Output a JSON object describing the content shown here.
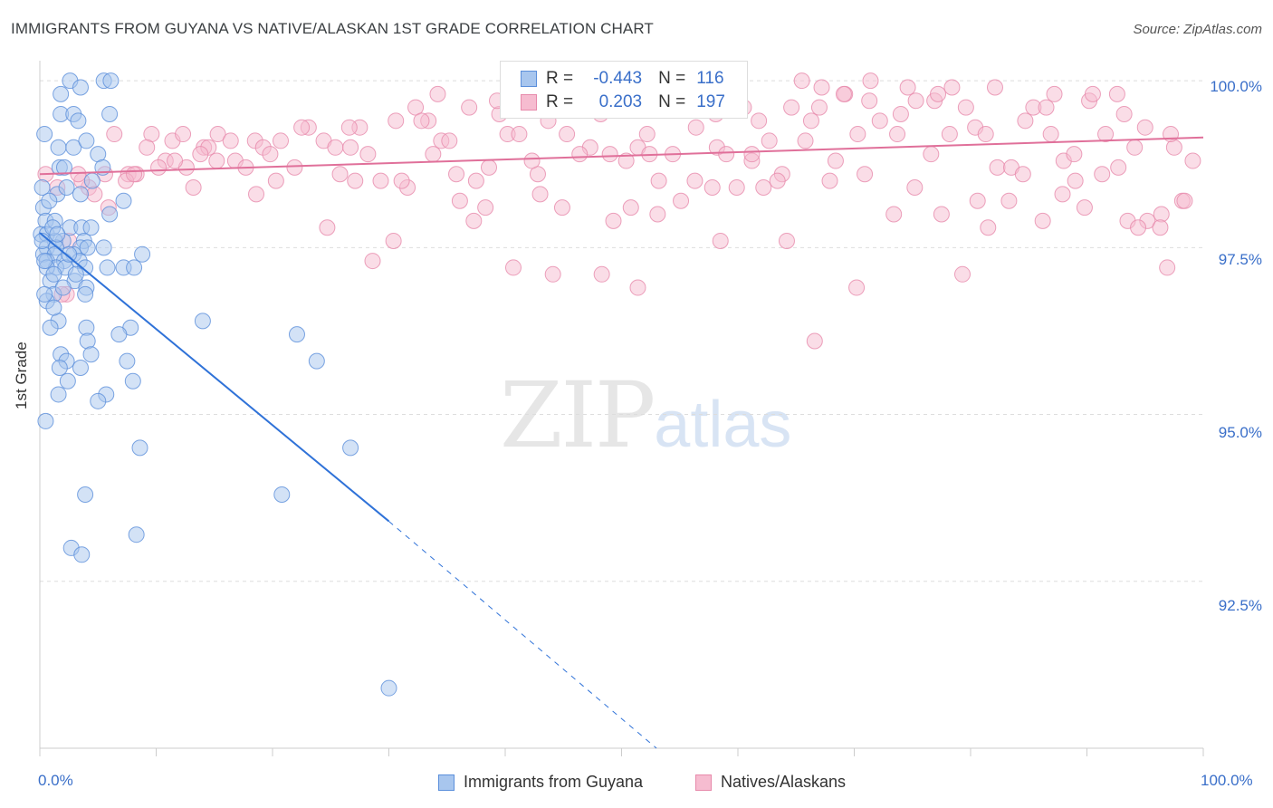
{
  "header": {
    "title": "IMMIGRANTS FROM GUYANA VS NATIVE/ALASKAN 1ST GRADE CORRELATION CHART",
    "source": "Source: ZipAtlas.com"
  },
  "watermark": {
    "zip": "ZIP",
    "atlas": "atlas"
  },
  "legend_top": {
    "rows": [
      {
        "r_label": "R =",
        "r_value": "-0.443",
        "n_label": "N =",
        "n_value": "116"
      },
      {
        "r_label": "R =",
        "r_value": "0.203",
        "n_label": "N =",
        "n_value": "197"
      }
    ]
  },
  "legend_bottom": {
    "series1": "Immigrants from Guyana",
    "series2": "Natives/Alaskans"
  },
  "colors": {
    "blue_fill": "#a8c6ee",
    "blue_stroke": "#5b8fdb",
    "blue_line": "#2f72d8",
    "pink_fill": "#f6bcd0",
    "pink_stroke": "#e78aab",
    "pink_line": "#e0709a",
    "tick_text": "#3a6fc9",
    "grid": "#dddddd"
  },
  "chart_data": {
    "type": "scatter",
    "title": "IMMIGRANTS FROM GUYANA VS NATIVE/ALASKAN 1ST GRADE CORRELATION CHART",
    "xlabel": "",
    "ylabel": "1st Grade",
    "x_tick_labels": [
      "0.0%",
      "100.0%"
    ],
    "y_tick_labels": [
      "100.0%",
      "97.5%",
      "95.0%",
      "92.5%"
    ],
    "xlim": [
      0,
      100
    ],
    "ylim": [
      90.0,
      100.3
    ],
    "grid": "horizontal dashed",
    "legend": "bottom-center",
    "series": [
      {
        "name": "Immigrants from Guyana",
        "color": "#a8c6ee",
        "points": [
          [
            2.6,
            100
          ],
          [
            3.5,
            99.9
          ],
          [
            5.5,
            100
          ],
          [
            1.8,
            99.5
          ],
          [
            2.9,
            99.5
          ],
          [
            6,
            99.5
          ],
          [
            3.3,
            99.4
          ],
          [
            1.6,
            99
          ],
          [
            2.9,
            99
          ],
          [
            5,
            98.9
          ],
          [
            1.7,
            98.7
          ],
          [
            2.1,
            98.7
          ],
          [
            5.4,
            98.7
          ],
          [
            4.5,
            98.5
          ],
          [
            0.2,
            98.4
          ],
          [
            1.5,
            98.3
          ],
          [
            3.5,
            98.3
          ],
          [
            7.2,
            98.2
          ],
          [
            0.3,
            98.1
          ],
          [
            6,
            98
          ],
          [
            0.5,
            97.9
          ],
          [
            1.3,
            97.9
          ],
          [
            2.6,
            97.8
          ],
          [
            3.6,
            97.8
          ],
          [
            4.4,
            97.8
          ],
          [
            0.1,
            97.7
          ],
          [
            0.6,
            97.7
          ],
          [
            2,
            97.6
          ],
          [
            3.8,
            97.6
          ],
          [
            1.3,
            97.6
          ],
          [
            0.6,
            97.5
          ],
          [
            1.4,
            97.5
          ],
          [
            3.5,
            97.5
          ],
          [
            5.5,
            97.5
          ],
          [
            4.1,
            97.5
          ],
          [
            0.3,
            97.4
          ],
          [
            1.3,
            97.4
          ],
          [
            2.9,
            97.4
          ],
          [
            8.8,
            97.4
          ],
          [
            0.6,
            97.3
          ],
          [
            2.1,
            97.3
          ],
          [
            3.4,
            97.3
          ],
          [
            3.9,
            97.2
          ],
          [
            1.4,
            97.2
          ],
          [
            0.6,
            97.2
          ],
          [
            2.2,
            97.2
          ],
          [
            5.8,
            97.2
          ],
          [
            7.2,
            97.2
          ],
          [
            8.1,
            97.2
          ],
          [
            0.9,
            97
          ],
          [
            3,
            97
          ],
          [
            4,
            96.9
          ],
          [
            1.2,
            96.8
          ],
          [
            0.6,
            96.7
          ],
          [
            3.9,
            96.8
          ],
          [
            1.6,
            96.4
          ],
          [
            0.9,
            96.3
          ],
          [
            4,
            96.3
          ],
          [
            7.8,
            96.3
          ],
          [
            14,
            96.4
          ],
          [
            4.1,
            96.1
          ],
          [
            6.8,
            96.2
          ],
          [
            22.1,
            96.2
          ],
          [
            1.8,
            95.9
          ],
          [
            4.4,
            95.9
          ],
          [
            2.3,
            95.8
          ],
          [
            3.5,
            95.7
          ],
          [
            1.7,
            95.7
          ],
          [
            7.5,
            95.8
          ],
          [
            23.8,
            95.8
          ],
          [
            2.4,
            95.5
          ],
          [
            8,
            95.5
          ],
          [
            5.7,
            95.3
          ],
          [
            1.6,
            95.3
          ],
          [
            5,
            95.2
          ],
          [
            0.5,
            94.9
          ],
          [
            8.6,
            94.5
          ],
          [
            26.7,
            94.5
          ],
          [
            3.9,
            93.8
          ],
          [
            20.8,
            93.8
          ],
          [
            8.3,
            93.2
          ],
          [
            2.7,
            93
          ],
          [
            3.6,
            92.9
          ],
          [
            30,
            90.9
          ],
          [
            6.1,
            100
          ],
          [
            1.8,
            99.8
          ],
          [
            4,
            99.1
          ],
          [
            0.4,
            99.2
          ],
          [
            2.3,
            98.4
          ],
          [
            0.8,
            98.2
          ],
          [
            1.1,
            97.8
          ],
          [
            1.5,
            97.7
          ],
          [
            0.2,
            97.6
          ],
          [
            2.5,
            97.4
          ],
          [
            1.2,
            97.1
          ],
          [
            0.4,
            97.3
          ],
          [
            3.1,
            97.1
          ],
          [
            2,
            96.9
          ],
          [
            0.4,
            96.8
          ],
          [
            1.2,
            96.6
          ]
        ]
      },
      {
        "name": "Natives/Alaskans",
        "color": "#f6bcd0",
        "points": [
          [
            1.5,
            98.4
          ],
          [
            2.5,
            97.6
          ],
          [
            4.2,
            98.4
          ],
          [
            5.6,
            98.6
          ],
          [
            7.6,
            98.6
          ],
          [
            8.3,
            98.6
          ],
          [
            9.6,
            99.2
          ],
          [
            10.8,
            98.8
          ],
          [
            11.4,
            99.1
          ],
          [
            12.6,
            98.7
          ],
          [
            13.2,
            98.4
          ],
          [
            14.1,
            99
          ],
          [
            15.3,
            99.2
          ],
          [
            16.8,
            98.8
          ],
          [
            17.7,
            98.7
          ],
          [
            18.5,
            99.1
          ],
          [
            19.2,
            99
          ],
          [
            20.7,
            99.1
          ],
          [
            21.9,
            98.7
          ],
          [
            23.1,
            99.3
          ],
          [
            24.4,
            99.1
          ],
          [
            25.4,
            99
          ],
          [
            26.7,
            99
          ],
          [
            27.5,
            99.3
          ],
          [
            28.2,
            98.9
          ],
          [
            29.3,
            98.5
          ],
          [
            30.6,
            99.4
          ],
          [
            31.6,
            98.4
          ],
          [
            32.3,
            99.6
          ],
          [
            33.4,
            99.4
          ],
          [
            34.5,
            99.1
          ],
          [
            35.8,
            98.6
          ],
          [
            36.9,
            99.6
          ],
          [
            37.5,
            98.5
          ],
          [
            38.6,
            98.7
          ],
          [
            39.5,
            99.5
          ],
          [
            40.2,
            99.2
          ],
          [
            41.9,
            99.9
          ],
          [
            42.8,
            98.6
          ],
          [
            43.7,
            99.4
          ],
          [
            44.9,
            98.1
          ],
          [
            46.6,
            99.9
          ],
          [
            47.3,
            99
          ],
          [
            48.2,
            99.5
          ],
          [
            49,
            98.9
          ],
          [
            50.8,
            98.1
          ],
          [
            51.4,
            99
          ],
          [
            52.4,
            98.9
          ],
          [
            53.1,
            98
          ],
          [
            54.4,
            98.9
          ],
          [
            55.6,
            99.7
          ],
          [
            56.3,
            98.5
          ],
          [
            57.3,
            99.9
          ],
          [
            58.2,
            99
          ],
          [
            59,
            98.9
          ],
          [
            59.9,
            98.4
          ],
          [
            61.2,
            98.8
          ],
          [
            61.8,
            99.4
          ],
          [
            62.7,
            99.1
          ],
          [
            63.8,
            98.6
          ],
          [
            64.6,
            99.6
          ],
          [
            65.5,
            100
          ],
          [
            66.3,
            99.4
          ],
          [
            67.2,
            99.9
          ],
          [
            67.9,
            98.5
          ],
          [
            69.2,
            99.8
          ],
          [
            70.3,
            99.2
          ],
          [
            71.4,
            100
          ],
          [
            72.2,
            99.4
          ],
          [
            73.4,
            98
          ],
          [
            74.6,
            99.9
          ],
          [
            75.3,
            99.7
          ],
          [
            76.6,
            98.9
          ],
          [
            77.5,
            98
          ],
          [
            78.4,
            99.9
          ],
          [
            79.6,
            99.6
          ],
          [
            80.4,
            99.3
          ],
          [
            81.3,
            99.2
          ],
          [
            82.3,
            98.7
          ],
          [
            83.5,
            98.7
          ],
          [
            84.7,
            99.4
          ],
          [
            85.4,
            99.6
          ],
          [
            86.2,
            97.9
          ],
          [
            87.2,
            99.8
          ],
          [
            88,
            98.8
          ],
          [
            89,
            98.5
          ],
          [
            90.2,
            99.7
          ],
          [
            91.3,
            98.6
          ],
          [
            92.6,
            99.8
          ],
          [
            93.5,
            97.9
          ],
          [
            94.1,
            99
          ],
          [
            95.2,
            97.9
          ],
          [
            96.4,
            98
          ],
          [
            97.5,
            99
          ],
          [
            98.2,
            98.2
          ],
          [
            99.1,
            98.8
          ],
          [
            3.6,
            98.5
          ],
          [
            10.2,
            98.7
          ],
          [
            14.5,
            99
          ],
          [
            24.7,
            97.8
          ],
          [
            30.4,
            97.6
          ],
          [
            40.7,
            97.2
          ],
          [
            44.1,
            97.1
          ],
          [
            48.3,
            97.1
          ],
          [
            51.4,
            96.9
          ],
          [
            58.5,
            97.6
          ],
          [
            66.6,
            96.1
          ],
          [
            70.2,
            96.9
          ],
          [
            79.3,
            97.1
          ],
          [
            96.9,
            97.2
          ],
          [
            6.4,
            99.2
          ],
          [
            22.5,
            99.3
          ],
          [
            34.2,
            99.8
          ],
          [
            45.3,
            99.2
          ],
          [
            55.1,
            98.2
          ],
          [
            64.2,
            97.6
          ],
          [
            75.2,
            98.4
          ],
          [
            86.5,
            99.6
          ],
          [
            7.4,
            98.5
          ],
          [
            18.6,
            98.3
          ],
          [
            28.6,
            97.3
          ],
          [
            37.3,
            97.9
          ],
          [
            53.2,
            98.5
          ],
          [
            68.4,
            98.8
          ],
          [
            81.5,
            97.8
          ],
          [
            89.8,
            98.1
          ],
          [
            93.2,
            99.5
          ],
          [
            2.3,
            96.8
          ],
          [
            5.9,
            98.1
          ],
          [
            12.3,
            99.2
          ],
          [
            16.4,
            99.1
          ],
          [
            20.3,
            98.5
          ],
          [
            26.6,
            99.3
          ],
          [
            32.8,
            99.4
          ],
          [
            36.1,
            98.2
          ],
          [
            39.3,
            99.7
          ],
          [
            43,
            98.3
          ],
          [
            47.6,
            99.6
          ],
          [
            50.4,
            98.8
          ],
          [
            54.5,
            99.8
          ],
          [
            57.8,
            98.4
          ],
          [
            60.5,
            99.6
          ],
          [
            63.4,
            98.5
          ],
          [
            67,
            99.6
          ],
          [
            70.9,
            98.6
          ],
          [
            74,
            99.5
          ],
          [
            76.9,
            99.7
          ],
          [
            80.6,
            98.2
          ],
          [
            84.5,
            98.6
          ],
          [
            87.9,
            98.3
          ],
          [
            91.6,
            99.2
          ],
          [
            95,
            99.3
          ],
          [
            98.4,
            98.2
          ],
          [
            1.9,
            96.8
          ],
          [
            4.7,
            98.3
          ],
          [
            9.2,
            99
          ],
          [
            13.8,
            98.9
          ],
          [
            19.8,
            98.9
          ],
          [
            25.8,
            98.6
          ],
          [
            31.1,
            98.5
          ],
          [
            35.2,
            99.1
          ],
          [
            38.3,
            98.1
          ],
          [
            42.3,
            98.8
          ],
          [
            49.3,
            97.9
          ],
          [
            52.2,
            99.2
          ],
          [
            56.4,
            99.3
          ],
          [
            62.2,
            98.4
          ],
          [
            65.8,
            99.1
          ],
          [
            69.1,
            99.8
          ],
          [
            73.7,
            99.2
          ],
          [
            78.2,
            99.2
          ],
          [
            83.3,
            98.2
          ],
          [
            86.9,
            99.2
          ],
          [
            90.5,
            99.8
          ],
          [
            94.4,
            97.8
          ],
          [
            97.2,
            99.2
          ],
          [
            0.5,
            98.6
          ],
          [
            8.1,
            98.6
          ],
          [
            11.6,
            98.8
          ],
          [
            15.2,
            98.8
          ],
          [
            27.1,
            98.5
          ],
          [
            33.8,
            98.9
          ],
          [
            41.2,
            99.2
          ],
          [
            46.4,
            98.9
          ],
          [
            58.1,
            99.5
          ],
          [
            61.2,
            98.9
          ],
          [
            71.3,
            99.7
          ],
          [
            77.2,
            99.8
          ],
          [
            82.1,
            99.9
          ],
          [
            88.9,
            98.9
          ],
          [
            92.7,
            98.7
          ],
          [
            96.3,
            97.8
          ],
          [
            3.3,
            98.6
          ]
        ]
      }
    ],
    "trendlines": [
      {
        "series": "Immigrants from Guyana",
        "x": [
          0,
          30
        ],
        "y": [
          97.72,
          93.4
        ],
        "extends_dashed_to": [
          53,
          90.0
        ]
      },
      {
        "series": "Natives/Alaskans",
        "x": [
          0,
          100
        ],
        "y": [
          98.6,
          99.15
        ]
      }
    ]
  }
}
